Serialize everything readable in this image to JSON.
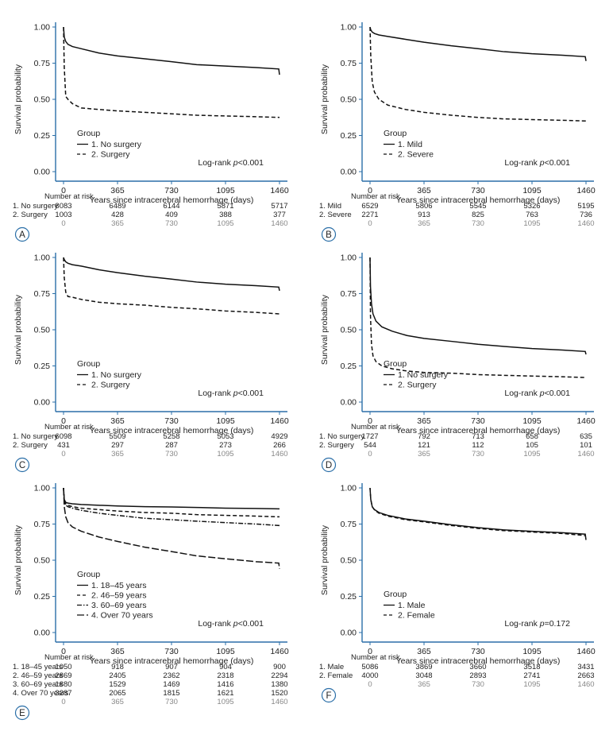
{
  "shared": {
    "ylabel": "Survival probability",
    "xlabel": "Years since intracerebral hemorrhage (days)",
    "group_title": "Group",
    "risk_title": "Number at risk",
    "time_points": [
      0,
      365,
      730,
      1095,
      1460
    ],
    "time_labels": [
      "0",
      "365",
      "730",
      "1095",
      "1460"
    ],
    "ytick_labels": [
      "0.00",
      "0.25",
      "0.50",
      "0.75",
      "1.00"
    ],
    "colors": {
      "axis": "#2b6fa8",
      "curve": "#111111",
      "panel_letter_circle": "#2b6fa8",
      "time_row_text": "#888888"
    }
  },
  "chart_data": [
    {
      "type": "line",
      "panel": "A",
      "xlabel": "Years since intracerebral hemorrhage (days)",
      "ylabel": "Survival probability",
      "xlim": [
        0,
        1460
      ],
      "ylim": [
        0,
        1
      ],
      "logrank": {
        "prefix": "Log-rank ",
        "p": "p",
        "suffix": "<0.001"
      },
      "legend": [
        "1. No surgery",
        "2. Surgery"
      ],
      "series": [
        {
          "name": "1. No surgery",
          "style": "solid",
          "x": [
            0,
            5,
            15,
            30,
            60,
            120,
            240,
            365,
            550,
            730,
            900,
            1095,
            1300,
            1455,
            1460
          ],
          "y": [
            1.0,
            0.93,
            0.9,
            0.88,
            0.865,
            0.85,
            0.82,
            0.8,
            0.78,
            0.76,
            0.74,
            0.73,
            0.72,
            0.71,
            0.67
          ]
        },
        {
          "name": "2. Surgery",
          "style": "dashed",
          "x": [
            0,
            5,
            15,
            30,
            60,
            120,
            240,
            365,
            550,
            730,
            900,
            1095,
            1300,
            1460
          ],
          "y": [
            1.0,
            0.72,
            0.52,
            0.5,
            0.47,
            0.44,
            0.43,
            0.42,
            0.41,
            0.4,
            0.39,
            0.385,
            0.38,
            0.375
          ]
        }
      ],
      "risk": {
        "rows": [
          {
            "label": "1. No surgery",
            "values": [
              "8083",
              "6489",
              "6144",
              "5871",
              "5717"
            ]
          },
          {
            "label": "2. Surgery",
            "values": [
              "1003",
              "428",
              "409",
              "388",
              "377"
            ]
          }
        ]
      }
    },
    {
      "type": "line",
      "panel": "B",
      "xlabel": "Years since intracerebral hemorrhage (days)",
      "ylabel": "Survival probability",
      "xlim": [
        0,
        1460
      ],
      "ylim": [
        0,
        1
      ],
      "logrank": {
        "prefix": "Log-rank ",
        "p": "p",
        "suffix": "<0.001"
      },
      "legend": [
        "1. Mild",
        "2. Severe"
      ],
      "series": [
        {
          "name": "1. Mild",
          "style": "solid",
          "x": [
            0,
            5,
            15,
            30,
            60,
            120,
            240,
            365,
            550,
            730,
            900,
            1095,
            1300,
            1455,
            1460
          ],
          "y": [
            1.0,
            0.98,
            0.965,
            0.955,
            0.945,
            0.935,
            0.915,
            0.895,
            0.87,
            0.85,
            0.83,
            0.815,
            0.805,
            0.795,
            0.765
          ]
        },
        {
          "name": "2. Severe",
          "style": "dashed",
          "x": [
            0,
            5,
            15,
            30,
            60,
            120,
            240,
            365,
            550,
            730,
            900,
            1095,
            1300,
            1460
          ],
          "y": [
            1.0,
            0.8,
            0.62,
            0.55,
            0.5,
            0.46,
            0.43,
            0.41,
            0.39,
            0.375,
            0.365,
            0.36,
            0.355,
            0.35
          ]
        }
      ],
      "risk": {
        "rows": [
          {
            "label": "1. Mild",
            "values": [
              "6529",
              "5806",
              "5545",
              "5326",
              "5195"
            ]
          },
          {
            "label": "2. Severe",
            "values": [
              "2271",
              "913",
              "825",
              "763",
              "736"
            ]
          }
        ]
      }
    },
    {
      "type": "line",
      "panel": "C",
      "xlabel": "Years since intracerebral hemorrhage (days)",
      "ylabel": "Survival probability",
      "xlim": [
        0,
        1460
      ],
      "ylim": [
        0,
        1
      ],
      "logrank": {
        "prefix": "Log-rank ",
        "p": "p",
        "suffix": "<0.001"
      },
      "legend": [
        "1. No surgery",
        "2. Surgery"
      ],
      "series": [
        {
          "name": "1. No surgery",
          "style": "solid",
          "x": [
            0,
            5,
            15,
            30,
            60,
            120,
            240,
            365,
            550,
            730,
            900,
            1095,
            1300,
            1455,
            1460
          ],
          "y": [
            1.0,
            0.985,
            0.97,
            0.96,
            0.95,
            0.94,
            0.915,
            0.895,
            0.87,
            0.85,
            0.83,
            0.815,
            0.805,
            0.795,
            0.77
          ]
        },
        {
          "name": "2. Surgery",
          "style": "dashed",
          "x": [
            0,
            5,
            15,
            30,
            60,
            120,
            240,
            365,
            550,
            730,
            900,
            1095,
            1300,
            1460
          ],
          "y": [
            1.0,
            0.86,
            0.76,
            0.73,
            0.725,
            0.71,
            0.69,
            0.68,
            0.67,
            0.655,
            0.645,
            0.63,
            0.62,
            0.61
          ]
        }
      ],
      "risk": {
        "rows": [
          {
            "label": "1. No surgery",
            "values": [
              "6098",
              "5509",
              "5258",
              "5053",
              "4929"
            ]
          },
          {
            "label": "2. Surgery",
            "values": [
              "431",
              "297",
              "287",
              "273",
              "266"
            ]
          }
        ]
      }
    },
    {
      "type": "line",
      "panel": "D",
      "xlabel": "Years since intracerebral hemorrhage (days)",
      "ylabel": "Survival probability",
      "xlim": [
        0,
        1460
      ],
      "ylim": [
        0,
        1
      ],
      "logrank": {
        "prefix": "Log-rank ",
        "p": "p",
        "suffix": "<0.001"
      },
      "legend": [
        "1. No surgery",
        "2. Surgery"
      ],
      "series": [
        {
          "name": "1. No surgery",
          "style": "solid",
          "x": [
            0,
            3,
            10,
            20,
            40,
            80,
            150,
            250,
            365,
            550,
            730,
            900,
            1095,
            1300,
            1455,
            1460
          ],
          "y": [
            1.0,
            0.8,
            0.68,
            0.61,
            0.56,
            0.52,
            0.49,
            0.46,
            0.44,
            0.42,
            0.4,
            0.385,
            0.37,
            0.36,
            0.35,
            0.33
          ]
        },
        {
          "name": "2. Surgery",
          "style": "dashed",
          "x": [
            0,
            3,
            10,
            20,
            40,
            80,
            150,
            250,
            365,
            550,
            730,
            900,
            1095,
            1300,
            1460
          ],
          "y": [
            1.0,
            0.6,
            0.4,
            0.32,
            0.28,
            0.25,
            0.23,
            0.215,
            0.205,
            0.2,
            0.19,
            0.185,
            0.18,
            0.175,
            0.17
          ]
        }
      ],
      "risk": {
        "rows": [
          {
            "label": "1. No surgery",
            "values": [
              "1727",
              "792",
              "713",
              "658",
              "635"
            ]
          },
          {
            "label": "2. Surgery",
            "values": [
              "544",
              "121",
              "112",
              "105",
              "101"
            ]
          }
        ]
      }
    },
    {
      "type": "line",
      "panel": "E",
      "xlabel": "Years since intracerebral hemorrhage (days)",
      "ylabel": "Survival probability",
      "xlim": [
        0,
        1460
      ],
      "ylim": [
        0,
        1
      ],
      "logrank": {
        "prefix": "Log-rank ",
        "p": "p",
        "suffix": "<0.001"
      },
      "legend": [
        "1. 18–45 years",
        "2. 46–59 years",
        "3. 60–69 years",
        "4. Over 70 years"
      ],
      "series": [
        {
          "name": "1. 18–45 years",
          "style": "solid",
          "x": [
            0,
            5,
            15,
            30,
            60,
            120,
            240,
            365,
            550,
            730,
            900,
            1095,
            1300,
            1460
          ],
          "y": [
            1.0,
            0.92,
            0.9,
            0.895,
            0.89,
            0.885,
            0.88,
            0.875,
            0.87,
            0.868,
            0.865,
            0.86,
            0.858,
            0.855
          ]
        },
        {
          "name": "2. 46–59 years",
          "style": "dashed",
          "x": [
            0,
            5,
            15,
            30,
            60,
            120,
            240,
            365,
            550,
            730,
            900,
            1095,
            1300,
            1460
          ],
          "y": [
            1.0,
            0.92,
            0.89,
            0.88,
            0.87,
            0.86,
            0.85,
            0.84,
            0.83,
            0.825,
            0.815,
            0.81,
            0.805,
            0.8
          ]
        },
        {
          "name": "3. 60–69 years",
          "style": "dashdot",
          "x": [
            0,
            5,
            15,
            30,
            60,
            120,
            240,
            365,
            550,
            730,
            900,
            1095,
            1300,
            1460
          ],
          "y": [
            1.0,
            0.91,
            0.88,
            0.87,
            0.86,
            0.845,
            0.825,
            0.81,
            0.79,
            0.78,
            0.77,
            0.76,
            0.75,
            0.74
          ]
        },
        {
          "name": "4. Over 70 years",
          "style": "longdash",
          "x": [
            0,
            5,
            15,
            30,
            60,
            120,
            240,
            365,
            550,
            730,
            900,
            1095,
            1300,
            1455,
            1460
          ],
          "y": [
            1.0,
            0.87,
            0.8,
            0.76,
            0.73,
            0.7,
            0.66,
            0.63,
            0.59,
            0.56,
            0.53,
            0.51,
            0.49,
            0.48,
            0.44
          ]
        }
      ],
      "risk": {
        "rows": [
          {
            "label": "1. 18–45 years",
            "values": [
              "1050",
              "918",
              "907",
              "904",
              "900"
            ]
          },
          {
            "label": "2. 46–59 years",
            "values": [
              "2869",
              "2405",
              "2362",
              "2318",
              "2294"
            ]
          },
          {
            "label": "3. 60–69 years",
            "values": [
              "1880",
              "1529",
              "1469",
              "1416",
              "1380"
            ]
          },
          {
            "label": "4. Over 70 years",
            "values": [
              "3287",
              "2065",
              "1815",
              "1621",
              "1520"
            ]
          }
        ]
      }
    },
    {
      "type": "line",
      "panel": "F",
      "xlabel": "Years since intracerebral hemorrhage (days)",
      "ylabel": "Survival probability",
      "xlim": [
        0,
        1460
      ],
      "ylim": [
        0,
        1
      ],
      "logrank": {
        "prefix": "Log-rank ",
        "p": "p",
        "suffix": "=0.172"
      },
      "legend": [
        "1. Male",
        "2. Female"
      ],
      "series": [
        {
          "name": "1. Male",
          "style": "solid",
          "x": [
            0,
            5,
            15,
            30,
            60,
            120,
            240,
            365,
            550,
            730,
            900,
            1095,
            1300,
            1455,
            1460
          ],
          "y": [
            1.0,
            0.92,
            0.87,
            0.85,
            0.83,
            0.81,
            0.785,
            0.77,
            0.745,
            0.725,
            0.71,
            0.7,
            0.69,
            0.68,
            0.64
          ]
        },
        {
          "name": "2. Female",
          "style": "dashed",
          "x": [
            0,
            5,
            15,
            30,
            60,
            120,
            240,
            365,
            550,
            730,
            900,
            1095,
            1300,
            1460
          ],
          "y": [
            1.0,
            0.92,
            0.87,
            0.848,
            0.825,
            0.805,
            0.78,
            0.765,
            0.74,
            0.72,
            0.705,
            0.695,
            0.685,
            0.67
          ]
        }
      ],
      "risk": {
        "rows": [
          {
            "label": "1. Male",
            "values": [
              "5086",
              "3869",
              "3660",
              "3518",
              "3431"
            ]
          },
          {
            "label": "2. Female",
            "values": [
              "4000",
              "3048",
              "2893",
              "2741",
              "2663"
            ]
          }
        ]
      }
    }
  ]
}
